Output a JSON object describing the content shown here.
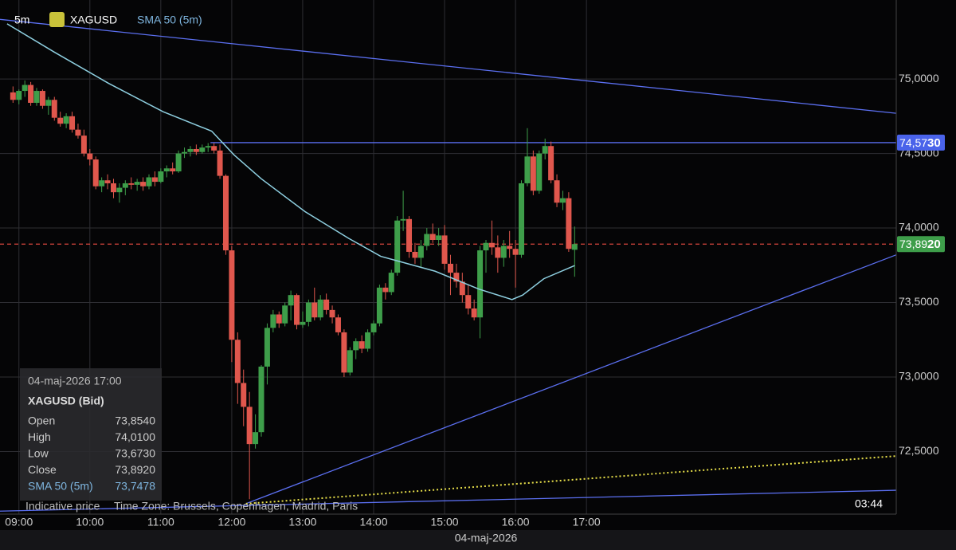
{
  "chart_data": {
    "type": "candlestick",
    "header": {
      "interval": "5m",
      "symbol": "XAGUSD",
      "indicator": "SMA 50 (5m)"
    },
    "x_label": "04-maj-2026",
    "footer": {
      "note": "Indicative price",
      "timezone": "Time Zone: Brussels, Copenhagen, Madrid, Paris",
      "countdown": "03:44"
    },
    "up_color": "#3e9e4a",
    "down_color": "#e0574d",
    "grid": true,
    "xlim": [
      524,
      1282
    ],
    "ylim": [
      72.08,
      75.53
    ],
    "xticks": [
      {
        "value": 540,
        "label": "09:00"
      },
      {
        "value": 600,
        "label": "10:00"
      },
      {
        "value": 660,
        "label": "11:00"
      },
      {
        "value": 720,
        "label": "12:00"
      },
      {
        "value": 780,
        "label": "13:00"
      },
      {
        "value": 840,
        "label": "14:00"
      },
      {
        "value": 900,
        "label": "15:00"
      },
      {
        "value": 960,
        "label": "16:00"
      },
      {
        "value": 1020,
        "label": "17:00"
      }
    ],
    "yticks": [
      {
        "value": 72.5,
        "label": "72,5000"
      },
      {
        "value": 73,
        "label": "73,0000"
      },
      {
        "value": 73.5,
        "label": "73,5000"
      },
      {
        "value": 74,
        "label": "74,0000"
      },
      {
        "value": 74.5,
        "label": "74,5000"
      },
      {
        "value": 75,
        "label": "75,0000"
      }
    ],
    "x": [
      535,
      540,
      545,
      550,
      555,
      560,
      565,
      570,
      575,
      580,
      585,
      590,
      595,
      600,
      605,
      610,
      615,
      620,
      625,
      630,
      635,
      640,
      645,
      650,
      655,
      660,
      665,
      670,
      675,
      680,
      685,
      690,
      695,
      700,
      705,
      710,
      715,
      720,
      725,
      730,
      735,
      740,
      745,
      750,
      755,
      760,
      765,
      770,
      775,
      780,
      785,
      790,
      795,
      800,
      805,
      810,
      815,
      820,
      825,
      830,
      835,
      840,
      845,
      850,
      855,
      860,
      865,
      870,
      875,
      880,
      885,
      890,
      895,
      900,
      905,
      910,
      915,
      920,
      925,
      930,
      935,
      940,
      945,
      950,
      955,
      960,
      965,
      970,
      975,
      980,
      985,
      990,
      995,
      1000,
      1005,
      1010
    ],
    "candles": [
      [
        74.91,
        74.95,
        74.84,
        74.86
      ],
      [
        74.86,
        74.93,
        74.83,
        74.92
      ],
      [
        74.92,
        74.99,
        74.88,
        74.96
      ],
      [
        74.96,
        74.98,
        74.82,
        74.84
      ],
      [
        74.84,
        74.94,
        74.82,
        74.92
      ],
      [
        74.92,
        74.93,
        74.8,
        74.82
      ],
      [
        74.82,
        74.88,
        74.76,
        74.86
      ],
      [
        74.86,
        74.88,
        74.72,
        74.74
      ],
      [
        74.74,
        74.78,
        74.68,
        74.7
      ],
      [
        74.7,
        74.77,
        74.67,
        74.75
      ],
      [
        74.75,
        74.78,
        74.64,
        74.66
      ],
      [
        74.66,
        74.7,
        74.6,
        74.62
      ],
      [
        74.62,
        74.66,
        74.48,
        74.5
      ],
      [
        74.5,
        74.53,
        74.42,
        74.46
      ],
      [
        74.46,
        74.48,
        74.26,
        74.28
      ],
      [
        74.28,
        74.34,
        74.24,
        74.32
      ],
      [
        74.32,
        74.36,
        74.26,
        74.3
      ],
      [
        74.3,
        74.33,
        74.2,
        74.24
      ],
      [
        74.24,
        74.3,
        74.17,
        74.27
      ],
      [
        74.27,
        74.32,
        74.22,
        74.3
      ],
      [
        74.3,
        74.34,
        74.26,
        74.29
      ],
      [
        74.29,
        74.33,
        74.25,
        74.31
      ],
      [
        74.31,
        74.34,
        74.25,
        74.28
      ],
      [
        74.28,
        74.36,
        74.26,
        74.34
      ],
      [
        74.34,
        74.38,
        74.28,
        74.31
      ],
      [
        74.31,
        74.4,
        74.3,
        74.38
      ],
      [
        74.38,
        74.42,
        74.34,
        74.4
      ],
      [
        74.4,
        74.44,
        74.36,
        74.38
      ],
      [
        74.38,
        74.52,
        74.37,
        74.5
      ],
      [
        74.5,
        74.54,
        74.47,
        74.51
      ],
      [
        74.51,
        74.55,
        74.48,
        74.53
      ],
      [
        74.53,
        74.56,
        74.49,
        74.51
      ],
      [
        74.51,
        74.56,
        74.5,
        74.54
      ],
      [
        74.54,
        74.57,
        74.51,
        74.55
      ],
      [
        74.55,
        74.57,
        74.5,
        74.52
      ],
      [
        74.52,
        74.56,
        74.33,
        74.35
      ],
      [
        74.35,
        74.36,
        73.82,
        73.85
      ],
      [
        73.85,
        73.88,
        73.1,
        73.25
      ],
      [
        73.25,
        73.3,
        72.82,
        72.96
      ],
      [
        72.96,
        73.05,
        72.67,
        72.8
      ],
      [
        72.8,
        72.9,
        72.18,
        72.55
      ],
      [
        72.55,
        72.75,
        72.52,
        72.63
      ],
      [
        72.63,
        73.08,
        72.6,
        73.07
      ],
      [
        73.07,
        73.36,
        72.95,
        73.33
      ],
      [
        73.33,
        73.45,
        73.3,
        73.42
      ],
      [
        73.42,
        73.44,
        73.33,
        73.36
      ],
      [
        73.36,
        73.5,
        73.34,
        73.48
      ],
      [
        73.48,
        73.58,
        73.38,
        73.55
      ],
      [
        73.55,
        73.56,
        73.32,
        73.35
      ],
      [
        73.35,
        73.44,
        73.33,
        73.37
      ],
      [
        73.37,
        73.52,
        73.34,
        73.5
      ],
      [
        73.5,
        73.6,
        73.38,
        73.4
      ],
      [
        73.4,
        73.55,
        73.38,
        73.52
      ],
      [
        73.52,
        73.56,
        73.42,
        73.45
      ],
      [
        73.45,
        73.48,
        73.36,
        73.4
      ],
      [
        73.4,
        73.42,
        73.28,
        73.3
      ],
      [
        73.3,
        73.32,
        73.0,
        73.03
      ],
      [
        73.03,
        73.2,
        73.01,
        73.18
      ],
      [
        73.18,
        73.26,
        73.12,
        73.24
      ],
      [
        73.24,
        73.28,
        73.16,
        73.19
      ],
      [
        73.19,
        73.32,
        73.17,
        73.3
      ],
      [
        73.3,
        73.38,
        73.28,
        73.36
      ],
      [
        73.36,
        73.62,
        73.34,
        73.6
      ],
      [
        73.6,
        73.63,
        73.52,
        73.57
      ],
      [
        73.57,
        73.72,
        73.55,
        73.7
      ],
      [
        73.7,
        74.08,
        73.68,
        74.05
      ],
      [
        74.05,
        74.25,
        73.98,
        74.06
      ],
      [
        74.06,
        74.08,
        73.8,
        73.84
      ],
      [
        73.84,
        73.9,
        73.76,
        73.8
      ],
      [
        73.8,
        73.92,
        73.74,
        73.88
      ],
      [
        73.88,
        74.0,
        73.85,
        73.96
      ],
      [
        73.96,
        74.03,
        73.9,
        73.92
      ],
      [
        73.92,
        74.0,
        73.88,
        73.95
      ],
      [
        73.95,
        74.02,
        73.72,
        73.76
      ],
      [
        73.76,
        73.82,
        73.55,
        73.7
      ],
      [
        73.7,
        73.76,
        73.6,
        73.64
      ],
      [
        73.64,
        73.7,
        73.5,
        73.55
      ],
      [
        73.55,
        73.62,
        73.42,
        73.46
      ],
      [
        73.46,
        73.52,
        73.38,
        73.4
      ],
      [
        73.4,
        73.88,
        73.26,
        73.85
      ],
      [
        73.85,
        73.92,
        73.7,
        73.9
      ],
      [
        73.9,
        74.05,
        73.82,
        73.87
      ],
      [
        73.87,
        73.95,
        73.7,
        73.8
      ],
      [
        73.8,
        73.92,
        73.74,
        73.88
      ],
      [
        73.88,
        73.98,
        73.8,
        73.86
      ],
      [
        73.86,
        73.92,
        73.6,
        73.82
      ],
      [
        73.82,
        74.32,
        73.8,
        74.3
      ],
      [
        74.3,
        74.67,
        74.28,
        74.48
      ],
      [
        74.48,
        74.52,
        74.22,
        74.25
      ],
      [
        74.25,
        74.52,
        74.23,
        74.5
      ],
      [
        74.5,
        74.6,
        74.46,
        74.55
      ],
      [
        74.55,
        74.58,
        74.3,
        74.32
      ],
      [
        74.32,
        74.36,
        74.14,
        74.17
      ],
      [
        74.17,
        74.25,
        74.12,
        74.2
      ],
      [
        74.2,
        74.24,
        73.84,
        73.86
      ],
      [
        73.854,
        74.01,
        73.673,
        73.892
      ]
    ],
    "sma": {
      "name": "SMA 50 (5m)",
      "color": "#8ecfe0",
      "x": [
        530,
        570,
        616,
        662,
        703,
        722,
        745,
        782,
        819,
        846,
        892,
        929,
        957,
        966,
        984,
        1010
      ],
      "values": [
        75.37,
        75.18,
        74.97,
        74.78,
        74.65,
        74.49,
        74.33,
        74.11,
        73.93,
        73.81,
        73.71,
        73.59,
        73.52,
        73.55,
        73.66,
        73.7478
      ]
    },
    "lines": [
      {
        "color": "#5b6ff0",
        "dash": "",
        "x": [
          524,
          1282
        ],
        "y": [
          75.4,
          74.77
        ]
      },
      {
        "color": "#5b6ff0",
        "dash": "",
        "x": [
          732,
          1282
        ],
        "y": [
          72.15,
          73.82
        ]
      },
      {
        "color": "#5b6ff0",
        "dash": "",
        "x": [
          524,
          1282
        ],
        "y": [
          72.1,
          72.24
        ]
      },
      {
        "color": "#e8e04a",
        "dash": "2 3",
        "x": [
          732,
          1282
        ],
        "y": [
          72.15,
          72.47
        ]
      },
      {
        "color": "#5b6ff0",
        "dash": "",
        "x": [
          702,
          1282
        ],
        "y": [
          74.573,
          74.573
        ]
      },
      {
        "color": "#d9453e",
        "dash": "5 4",
        "x": [
          524,
          1282
        ],
        "y": [
          73.892,
          73.892
        ]
      }
    ],
    "price_tags": [
      {
        "value": 74.573,
        "label": "74,5730",
        "color": "#4a63ea"
      },
      {
        "value": 73.892,
        "label": "73,8920",
        "color": "#3e9e4a"
      }
    ],
    "tooltip": {
      "date": "04-maj-2026 17:00",
      "symbol": "XAGUSD (Bid)",
      "rows": [
        [
          "Open",
          "73,8540"
        ],
        [
          "High",
          "74,0100"
        ],
        [
          "Low",
          "73,6730"
        ],
        [
          "Close",
          "73,8920"
        ],
        [
          "SMA 50 (5m)",
          "73,7478"
        ]
      ]
    }
  }
}
